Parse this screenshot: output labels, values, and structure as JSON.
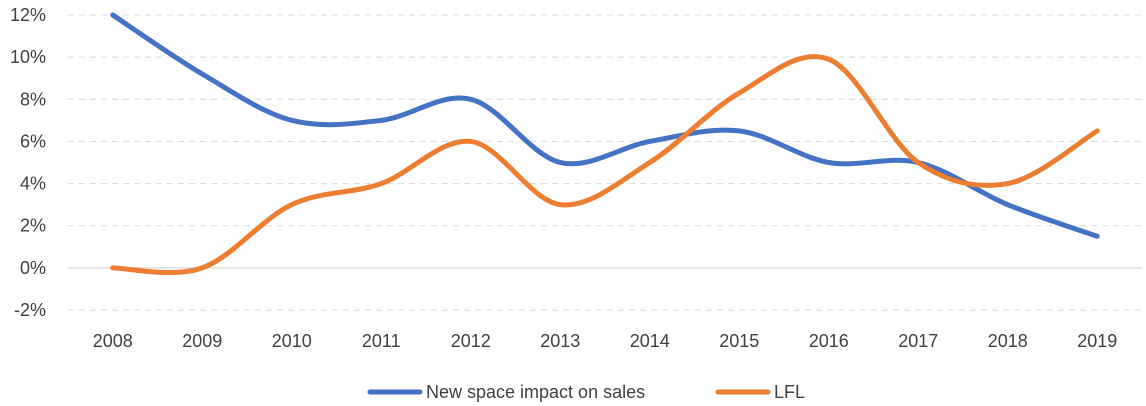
{
  "chart_data": {
    "type": "line",
    "title": "",
    "xlabel": "",
    "ylabel": "",
    "categories": [
      "2008",
      "2009",
      "2010",
      "2011",
      "2012",
      "2013",
      "2014",
      "2015",
      "2016",
      "2017",
      "2018",
      "2019"
    ],
    "ylim": [
      -2,
      12
    ],
    "yticks": [
      -2,
      0,
      2,
      4,
      6,
      8,
      10,
      12
    ],
    "ytick_labels": [
      "-2%",
      "0%",
      "2%",
      "4%",
      "6%",
      "8%",
      "10%",
      "12%"
    ],
    "grid": true,
    "legend_position": "bottom",
    "series": [
      {
        "name": "New space impact on sales",
        "color": "#4472c4",
        "values": [
          12,
          9.2,
          7,
          7,
          8,
          5,
          6,
          6.5,
          5,
          5,
          3,
          1.5
        ]
      },
      {
        "name": "LFL",
        "color": "#ed7d31",
        "values": [
          0,
          0,
          3,
          4,
          6,
          3,
          5,
          8.3,
          9.9,
          5,
          4,
          6.5
        ]
      }
    ]
  }
}
